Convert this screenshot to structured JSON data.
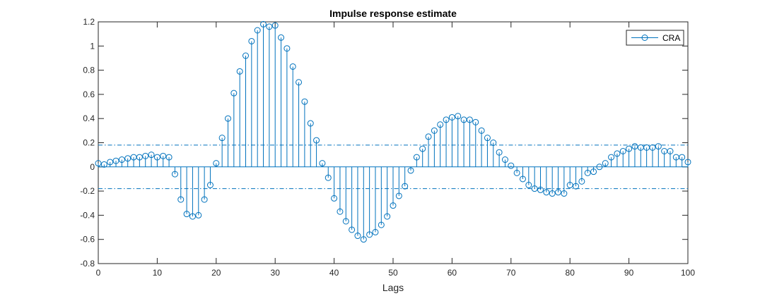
{
  "chart_data": {
    "type": "stem",
    "title": "Impulse response estimate",
    "xlabel": "Lags",
    "ylabel": "",
    "xlim": [
      0,
      100
    ],
    "ylim": [
      -0.8,
      1.2
    ],
    "xticks": [
      0,
      10,
      20,
      30,
      40,
      50,
      60,
      70,
      80,
      90,
      100
    ],
    "yticks": [
      -0.8,
      -0.6,
      -0.4,
      -0.2,
      0,
      0.2,
      0.4,
      0.6,
      0.8,
      1,
      1.2
    ],
    "legend_position": "top-right",
    "grid": false,
    "series": [
      {
        "name": "CRA",
        "color": "#0072BD",
        "marker": "circle",
        "x": [
          0,
          1,
          2,
          3,
          4,
          5,
          6,
          7,
          8,
          9,
          10,
          11,
          12,
          13,
          14,
          15,
          16,
          17,
          18,
          19,
          20,
          21,
          22,
          23,
          24,
          25,
          26,
          27,
          28,
          29,
          30,
          31,
          32,
          33,
          34,
          35,
          36,
          37,
          38,
          39,
          40,
          41,
          42,
          43,
          44,
          45,
          46,
          47,
          48,
          49,
          50,
          51,
          52,
          53,
          54,
          55,
          56,
          57,
          58,
          59,
          60,
          61,
          62,
          63,
          64,
          65,
          66,
          67,
          68,
          69,
          70,
          71,
          72,
          73,
          74,
          75,
          76,
          77,
          78,
          79,
          80,
          81,
          82,
          83,
          84,
          85,
          86,
          87,
          88,
          89,
          90,
          91,
          92,
          93,
          94,
          95,
          96,
          97,
          98,
          99,
          100
        ],
        "values": [
          0.03,
          0.02,
          0.04,
          0.05,
          0.06,
          0.07,
          0.08,
          0.08,
          0.09,
          0.1,
          0.08,
          0.09,
          0.08,
          -0.06,
          -0.27,
          -0.39,
          -0.41,
          -0.4,
          -0.27,
          -0.15,
          0.03,
          0.24,
          0.4,
          0.61,
          0.79,
          0.92,
          1.04,
          1.13,
          1.18,
          1.16,
          1.17,
          1.07,
          0.98,
          0.83,
          0.7,
          0.54,
          0.36,
          0.22,
          0.03,
          -0.09,
          -0.26,
          -0.37,
          -0.45,
          -0.52,
          -0.57,
          -0.6,
          -0.56,
          -0.54,
          -0.48,
          -0.41,
          -0.32,
          -0.24,
          -0.16,
          -0.03,
          0.08,
          0.15,
          0.25,
          0.3,
          0.35,
          0.39,
          0.41,
          0.42,
          0.39,
          0.39,
          0.37,
          0.3,
          0.24,
          0.2,
          0.12,
          0.06,
          0.01,
          -0.05,
          -0.1,
          -0.15,
          -0.18,
          -0.19,
          -0.21,
          -0.22,
          -0.21,
          -0.22,
          -0.15,
          -0.16,
          -0.12,
          -0.05,
          -0.04,
          0,
          0.03,
          0.08,
          0.11,
          0.13,
          0.15,
          0.17,
          0.16,
          0.16,
          0.16,
          0.17,
          0.13,
          0.13,
          0.08,
          0.08,
          0.04
        ]
      }
    ],
    "confidence_bounds": [
      0.18,
      -0.18
    ]
  }
}
